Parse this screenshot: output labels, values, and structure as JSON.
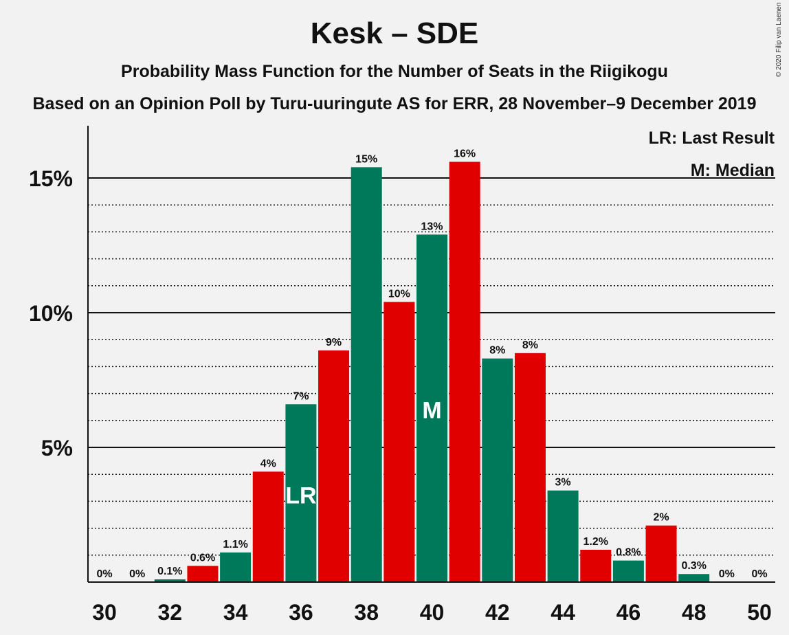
{
  "title": "Kesk – SDE",
  "subtitle": "Probability Mass Function for the Number of Seats in the Riigikogu",
  "subtitle2": "Based on an Opinion Poll by Turu-uuringute AS for ERR, 28 November–9 December 2019",
  "copyright": "© 2020 Filip van Laenen",
  "legend": {
    "last_result": "LR: Last Result",
    "median": "M: Median"
  },
  "colors": {
    "green": "#00785a",
    "red": "#e00000",
    "background": "#f2f2f2"
  },
  "chart_data": {
    "type": "bar",
    "x": [
      30,
      31,
      32,
      33,
      34,
      35,
      36,
      37,
      38,
      39,
      40,
      41,
      42,
      43,
      44,
      45,
      46,
      47,
      48,
      49,
      50
    ],
    "values": [
      0,
      0,
      0.1,
      0.6,
      1.1,
      4.1,
      6.6,
      8.6,
      15.4,
      10.4,
      12.9,
      15.6,
      8.3,
      8.5,
      3.4,
      1.2,
      0.8,
      2.1,
      0.3,
      0,
      0
    ],
    "labels": [
      "0%",
      "0%",
      "0.1%",
      "0.6%",
      "1.1%",
      "4%",
      "7%",
      "9%",
      "15%",
      "10%",
      "13%",
      "16%",
      "8%",
      "8%",
      "3%",
      "1.2%",
      "0.8%",
      "2%",
      "0.3%",
      "0%",
      "0%"
    ],
    "bar_colors": [
      "green",
      "green",
      "green",
      "red",
      "green",
      "red",
      "green",
      "red",
      "green",
      "red",
      "green",
      "red",
      "green",
      "red",
      "green",
      "red",
      "green",
      "red",
      "green",
      "green",
      "green"
    ],
    "xticks": [
      30,
      32,
      34,
      36,
      38,
      40,
      42,
      44,
      46,
      48,
      50
    ],
    "yticks": [
      {
        "value": 5,
        "label": "5%"
      },
      {
        "value": 10,
        "label": "10%"
      },
      {
        "value": 15,
        "label": "15%"
      }
    ],
    "yminor": [
      1,
      2,
      3,
      4,
      6,
      7,
      8,
      9,
      11,
      12,
      13,
      14
    ],
    "ylim": [
      0,
      17
    ],
    "last_result": {
      "x": 36,
      "label": "LR"
    },
    "median": {
      "x": 40,
      "label": "M"
    }
  }
}
